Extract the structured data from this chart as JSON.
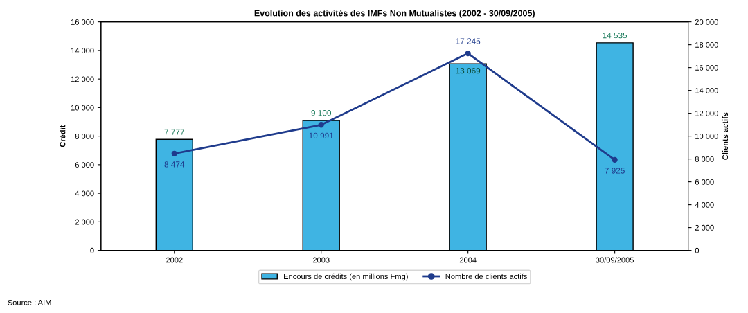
{
  "chart_data": {
    "type": "bar",
    "title": "Evolution des activités des IMFs Non Mutualistes (2002 - 30/09/2005)",
    "ylabel": "Crédit",
    "y2label": "Clients actifs",
    "categories": [
      "2002",
      "2003",
      "2004",
      "30/09/2005"
    ],
    "series": [
      {
        "name": "Encours de crédits (en millions Fmg)",
        "color": "#3fb4e3",
        "values": [
          7777,
          9100,
          13069,
          14535
        ],
        "value_labels": [
          "7 777",
          "9 100",
          "13 069",
          "14 535"
        ]
      },
      {
        "name": "Nombre de clients actifs",
        "type": "line",
        "axis": "y2",
        "color": "#1f3b8c",
        "marker": "circle",
        "values": [
          8474,
          10991,
          17245,
          7925
        ],
        "value_labels": [
          "8 474",
          "10 991",
          "17 245",
          "7 925"
        ]
      }
    ],
    "ylim": [
      0,
      16000
    ],
    "yticks": [
      {
        "value": 0,
        "label": "0"
      },
      {
        "value": 2000,
        "label": "2 000"
      },
      {
        "value": 4000,
        "label": "4 000"
      },
      {
        "value": 6000,
        "label": "6 000"
      },
      {
        "value": 8000,
        "label": "8 000"
      },
      {
        "value": 10000,
        "label": "10 000"
      },
      {
        "value": 12000,
        "label": "12 000"
      },
      {
        "value": 14000,
        "label": "14 000"
      },
      {
        "value": 16000,
        "label": "16 000"
      }
    ],
    "y2lim": [
      0,
      20000
    ],
    "y2ticks": [
      {
        "value": 0,
        "label": "0"
      },
      {
        "value": 2000,
        "label": "2 000"
      },
      {
        "value": 4000,
        "label": "4 000"
      },
      {
        "value": 6000,
        "label": "6 000"
      },
      {
        "value": 8000,
        "label": "8 000"
      },
      {
        "value": 10000,
        "label": "10 000"
      },
      {
        "value": 12000,
        "label": "12 000"
      },
      {
        "value": 14000,
        "label": "14 000"
      },
      {
        "value": 16000,
        "label": "16 000"
      },
      {
        "value": 18000,
        "label": "18 000"
      },
      {
        "value": 20000,
        "label": "20 000"
      }
    ],
    "legend": "bottom",
    "grid": false,
    "annotations": [
      "Source : AIM"
    ]
  }
}
